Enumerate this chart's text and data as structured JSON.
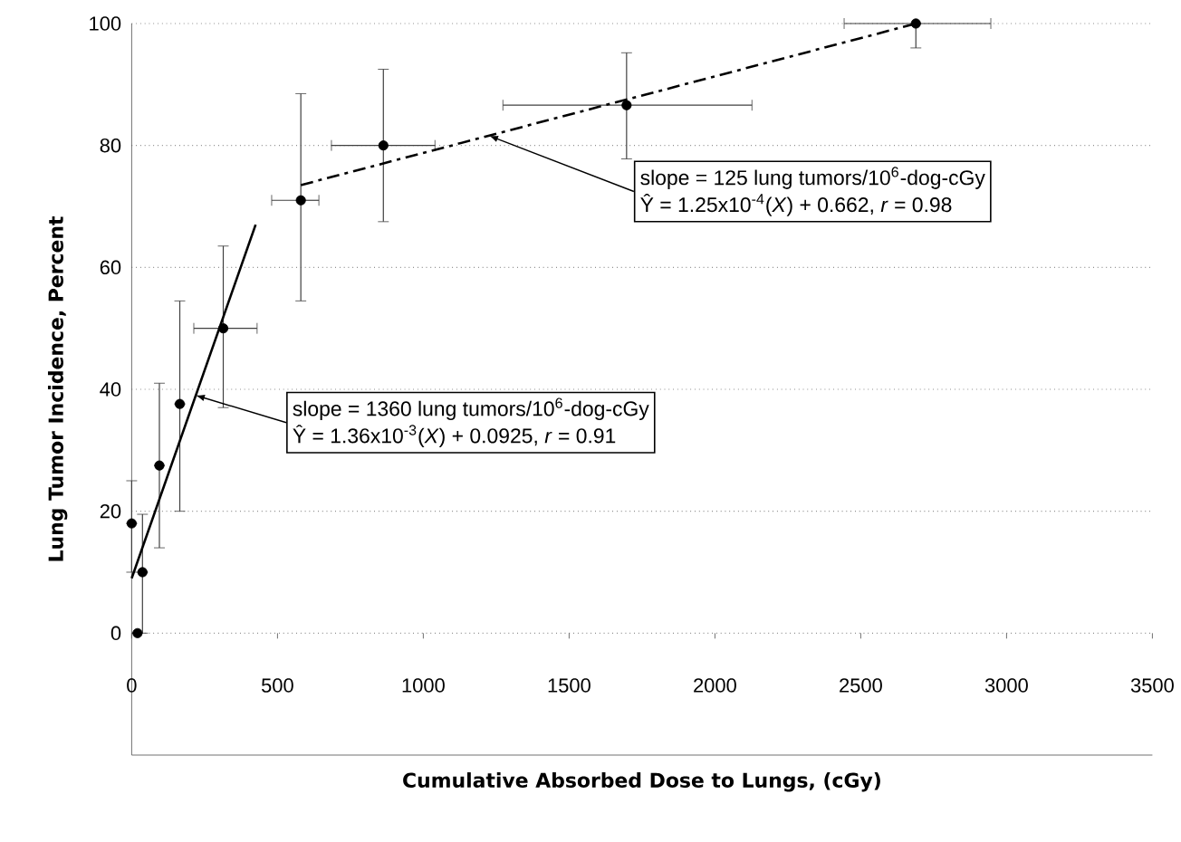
{
  "chart_data": {
    "type": "scatter",
    "xlabel": "Cumulative Absorbed Dose to Lungs, (cGy)",
    "ylabel": "Lung Tumor Incidence, Percent",
    "xlim": [
      0,
      3500
    ],
    "ylim": [
      -20,
      100
    ],
    "xticks": [
      0,
      500,
      1000,
      1500,
      2000,
      2500,
      3000,
      3500
    ],
    "yticks": [
      0,
      20,
      40,
      60,
      80,
      100
    ],
    "grid": "y",
    "series": [
      {
        "color": "#000000",
        "marker": "circle",
        "x": [
          0,
          20,
          37,
          95,
          165,
          314,
          580,
          863,
          1697,
          2689
        ],
        "values": [
          18,
          0,
          10,
          27.5,
          37.6,
          50,
          71,
          80,
          86.6,
          100
        ],
        "errors": [
          [
            10,
            25
          ],
          null,
          [
            0,
            19.5
          ],
          [
            14,
            41
          ],
          [
            20,
            54.5
          ],
          [
            37,
            63.5
          ],
          [
            54.5,
            88.5
          ],
          [
            67.5,
            92.5
          ],
          [
            77.8,
            95.2
          ],
          [
            96,
            100
          ]
        ],
        "xerrors": [
          null,
          null,
          null,
          null,
          null,
          [
            213,
            430
          ],
          [
            480,
            642
          ],
          [
            685,
            1040
          ],
          [
            1273,
            2127
          ],
          [
            2443,
            2946
          ]
        ]
      },
      {
        "type": "line",
        "color": "#000000",
        "line_style": "solid",
        "marker": "none",
        "x": [
          0,
          425
        ],
        "values": [
          9,
          67
        ]
      },
      {
        "type": "line",
        "color": "#000000",
        "line_style": "dashed",
        "marker": "none",
        "x": [
          580,
          2690
        ],
        "values": [
          73.5,
          100
        ]
      }
    ],
    "annotations": [
      {
        "text": "slope = 1360 lung tumors/10$^{6}$-dog-cGy",
        "x": 220,
        "y": 39
      },
      "Ŷ = 1.36x10$^{-3}$(*X*) + 0.0925, *r* = 0.91",
      {
        "text": "slope = 125 lung tumors/10$^{6}$-dog-cGy",
        "x": 1226,
        "y": 81.6
      },
      "Ŷ = 1.25x10$^{-4}$(*X*) + 0.662, *r* = 0.98"
    ]
  }
}
